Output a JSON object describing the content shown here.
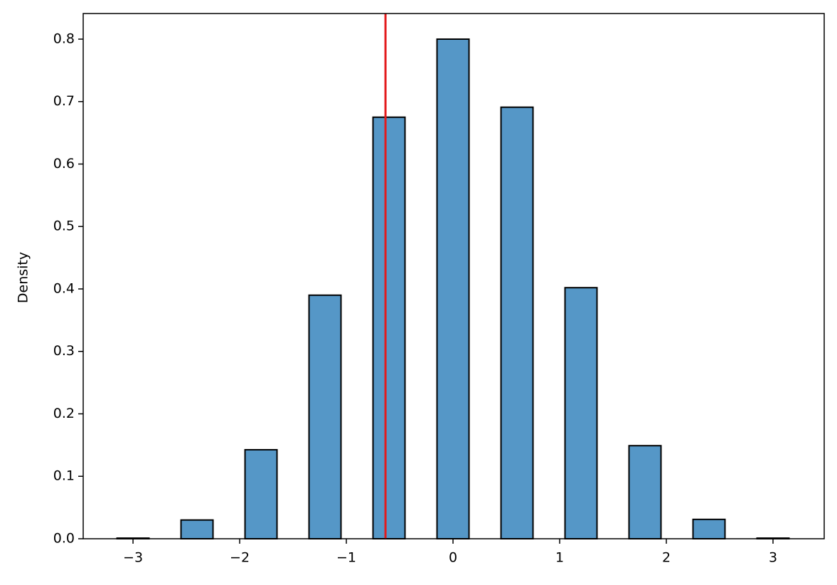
{
  "chart_data": {
    "type": "histogram",
    "y_label": "Density",
    "bins": [
      -3.3,
      -2.7,
      -2.1,
      -1.5,
      -0.9,
      -0.3,
      0.3,
      0.9,
      1.5,
      2.1,
      2.7,
      3.3
    ],
    "values": [
      0.001,
      0.03,
      0.1425,
      0.39,
      0.675,
      0.8,
      0.691,
      0.402,
      0.149,
      0.031,
      0.001
    ],
    "color": "#5597c7",
    "edgecolor": "#000000",
    "shrink": 0.5,
    "vline": {
      "x": -0.633,
      "color": "#e31a1c"
    },
    "xlim": [
      -3.467,
      3.48
    ],
    "xticks": [
      {
        "value": -3,
        "label": "−3"
      },
      {
        "value": -2,
        "label": "−2"
      },
      {
        "value": -1,
        "label": "−1"
      },
      0,
      1,
      2,
      3
    ],
    "ylim": [
      0,
      0.841
    ],
    "yticks": [
      {
        "value": 0,
        "label": "0.0"
      },
      0.1,
      0.2,
      0.3,
      0.4,
      0.5,
      0.6,
      0.7,
      0.8
    ]
  }
}
